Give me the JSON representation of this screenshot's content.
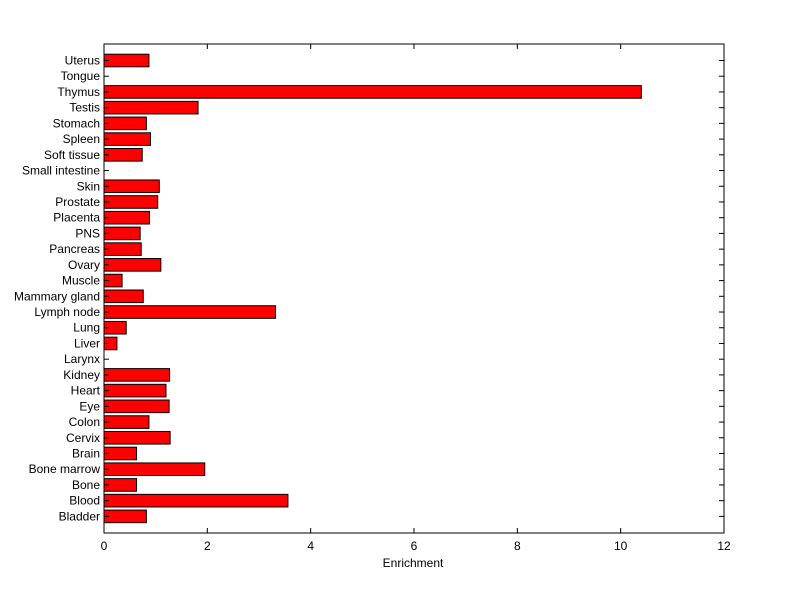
{
  "chart_data": {
    "type": "bar",
    "orientation": "horizontal",
    "categories": [
      "Uterus",
      "Tongue",
      "Thymus",
      "Testis",
      "Stomach",
      "Spleen",
      "Soft tissue",
      "Small intestine",
      "Skin",
      "Prostate",
      "Placenta",
      "PNS",
      "Pancreas",
      "Ovary",
      "Muscle",
      "Mammary gland",
      "Lymph node",
      "Lung",
      "Liver",
      "Larynx",
      "Kidney",
      "Heart",
      "Eye",
      "Colon",
      "Cervix",
      "Brain",
      "Bone marrow",
      "Bone",
      "Blood",
      "Bladder"
    ],
    "values": [
      0.87,
      0,
      10.4,
      1.82,
      0.82,
      0.9,
      0.74,
      0,
      1.07,
      1.04,
      0.88,
      0.7,
      0.72,
      1.1,
      0.35,
      0.76,
      3.32,
      0.43,
      0.25,
      0,
      1.27,
      1.2,
      1.26,
      0.87,
      1.28,
      0.63,
      1.95,
      0.63,
      3.56,
      0.82
    ],
    "xlabel": "Enrichment",
    "ylabel": "",
    "xlim": [
      0,
      12
    ],
    "xticks": [
      0,
      2,
      4,
      6,
      8,
      10,
      12
    ],
    "grid": false,
    "bar_color": "#ff0000",
    "edge_color": "#000000"
  }
}
